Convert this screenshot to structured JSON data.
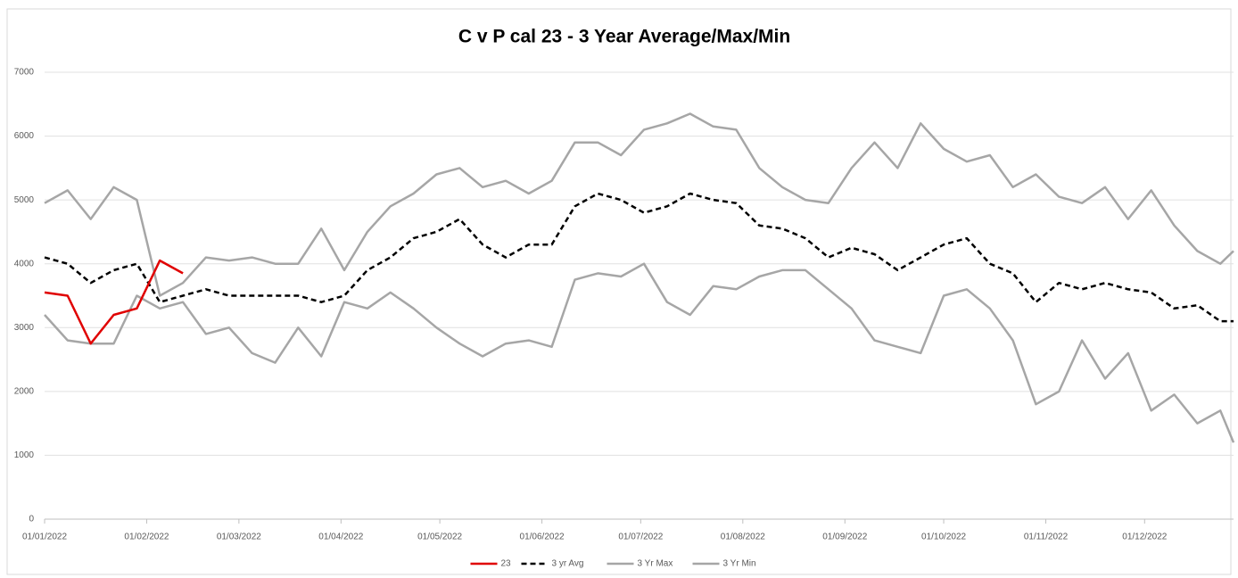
{
  "chart_data": {
    "type": "line",
    "title": "C v P cal 23 - 3 Year Average/Max/Min",
    "x": [
      "01/01/2022",
      "08/01/2022",
      "15/01/2022",
      "22/01/2022",
      "29/01/2022",
      "05/02/2022",
      "12/02/2022",
      "19/02/2022",
      "26/02/2022",
      "05/03/2022",
      "12/03/2022",
      "19/03/2022",
      "26/03/2022",
      "02/04/2022",
      "09/04/2022",
      "16/04/2022",
      "23/04/2022",
      "30/04/2022",
      "07/05/2022",
      "14/05/2022",
      "21/05/2022",
      "28/05/2022",
      "04/06/2022",
      "11/06/2022",
      "18/06/2022",
      "25/06/2022",
      "02/07/2022",
      "09/07/2022",
      "16/07/2022",
      "23/07/2022",
      "30/07/2022",
      "06/08/2022",
      "13/08/2022",
      "20/08/2022",
      "27/08/2022",
      "03/09/2022",
      "10/09/2022",
      "17/09/2022",
      "24/09/2022",
      "01/10/2022",
      "08/10/2022",
      "15/10/2022",
      "22/10/2022",
      "29/10/2022",
      "05/11/2022",
      "12/11/2022",
      "19/11/2022",
      "26/11/2022",
      "03/12/2022",
      "10/12/2022",
      "17/12/2022",
      "24/12/2022",
      "28/12/2022"
    ],
    "series": [
      {
        "name": "23",
        "color": "#e00000",
        "dash": false,
        "values": [
          3550,
          3500,
          2750,
          3200,
          3300,
          4050,
          3850,
          null,
          null,
          null,
          null,
          null,
          null,
          null,
          null,
          null,
          null,
          null,
          null,
          null,
          null,
          null,
          null,
          null,
          null,
          null,
          null,
          null,
          null,
          null,
          null,
          null,
          null,
          null,
          null,
          null,
          null,
          null,
          null,
          null,
          null,
          null,
          null,
          null,
          null,
          null,
          null,
          null,
          null,
          null,
          null,
          null,
          null
        ]
      },
      {
        "name": "3 yr Avg",
        "color": "#000000",
        "dash": true,
        "values": [
          4100,
          4000,
          3700,
          3900,
          4000,
          3400,
          3500,
          3600,
          3500,
          3500,
          3500,
          3500,
          3400,
          3500,
          3900,
          4100,
          4400,
          4500,
          4700,
          4300,
          4100,
          4300,
          4300,
          4900,
          5100,
          5000,
          4800,
          4900,
          5100,
          5000,
          4950,
          4600,
          4550,
          4400,
          4100,
          4250,
          4150,
          3900,
          4100,
          4300,
          4400,
          4000,
          3850,
          3400,
          3700,
          3600,
          3700,
          3600,
          3550,
          3300,
          3350,
          3100,
          3100
        ]
      },
      {
        "name": "3 Yr Max",
        "color": "#a6a6a6",
        "dash": false,
        "values": [
          4950,
          5150,
          4700,
          5200,
          5000,
          3500,
          3700,
          4100,
          4050,
          4100,
          4000,
          4000,
          4550,
          3900,
          4500,
          4900,
          5100,
          5400,
          5500,
          5200,
          5300,
          5100,
          5300,
          5900,
          5900,
          5700,
          6100,
          6200,
          6350,
          6150,
          6100,
          5500,
          5200,
          5000,
          4950,
          5500,
          5900,
          5500,
          6200,
          5800,
          5600,
          5700,
          5200,
          5400,
          5050,
          4950,
          5200,
          4700,
          5150,
          4600,
          4200,
          4000,
          4200
        ]
      },
      {
        "name": "3 Yr Min",
        "color": "#a6a6a6",
        "dash": false,
        "values": [
          3200,
          2800,
          2750,
          2750,
          3500,
          3300,
          3400,
          2900,
          3000,
          2600,
          2450,
          3000,
          2550,
          3400,
          3300,
          3550,
          3300,
          3000,
          2750,
          2550,
          2750,
          2800,
          2700,
          3750,
          3850,
          3800,
          4000,
          3400,
          3200,
          3650,
          3600,
          3800,
          3900,
          3900,
          3600,
          3300,
          2800,
          2700,
          2600,
          3500,
          3600,
          3300,
          2800,
          1800,
          2000,
          2800,
          2200,
          2600,
          1700,
          1950,
          1500,
          1700,
          1200
        ]
      }
    ],
    "xlim": [
      "01/01/2022",
      "28/12/2022"
    ],
    "xticks": [
      "01/01/2022",
      "01/02/2022",
      "01/03/2022",
      "01/04/2022",
      "01/05/2022",
      "01/06/2022",
      "01/07/2022",
      "01/08/2022",
      "01/09/2022",
      "01/10/2022",
      "01/11/2022",
      "01/12/2022"
    ],
    "ylim": [
      0,
      7000
    ],
    "yticks": [
      0,
      1000,
      2000,
      3000,
      4000,
      5000,
      6000,
      7000
    ],
    "grid": true,
    "legend": "bottom"
  }
}
